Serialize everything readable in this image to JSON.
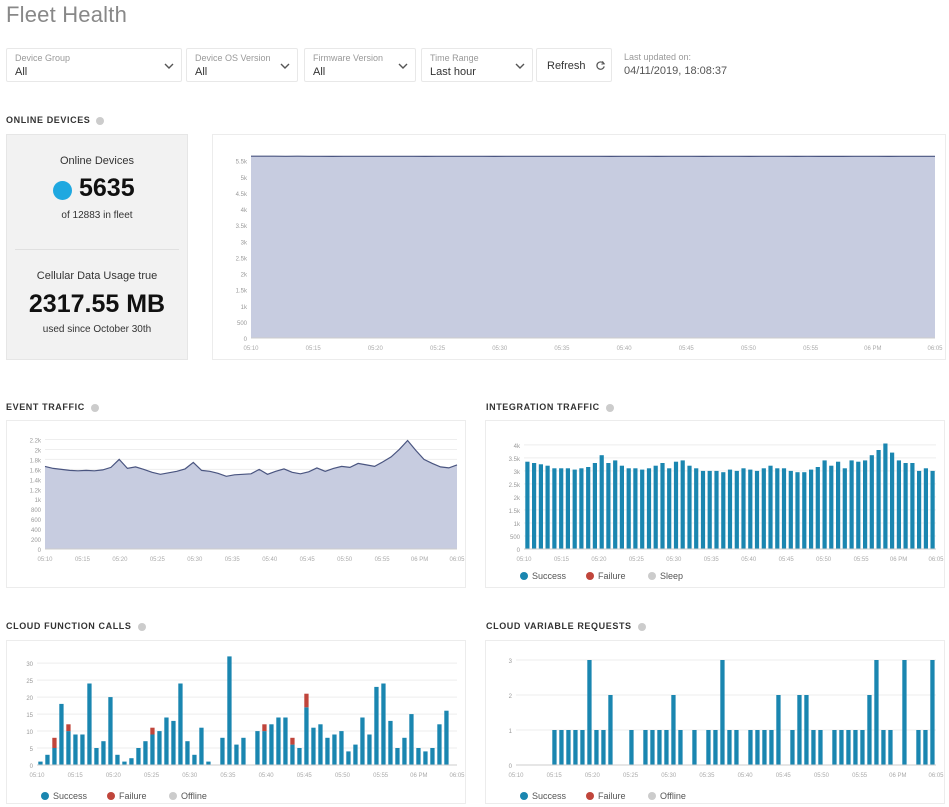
{
  "header": {
    "title": "Fleet Health"
  },
  "filters": {
    "device_group": {
      "label": "Device Group",
      "value": "All"
    },
    "device_os": {
      "label": "Device OS Version",
      "value": "All"
    },
    "firmware": {
      "label": "Firmware Version",
      "value": "All"
    },
    "time_range": {
      "label": "Time Range",
      "value": "Last hour"
    },
    "refresh_label": "Refresh",
    "last_updated_label": "Last updated on:",
    "last_updated_value": "04/11/2019, 18:08:37"
  },
  "sections": {
    "online_devices": "ONLINE DEVICES",
    "event_traffic": "EVENT TRAFFIC",
    "integration_traffic": "INTEGRATION TRAFFIC",
    "cloud_function_calls": "CLOUD FUNCTION CALLS",
    "cloud_variable_requests": "CLOUD VARIABLE REQUESTS"
  },
  "stats": {
    "online_label": "Online Devices",
    "online_count": "5635",
    "online_sub": "of 12883 in fleet",
    "cellular_label": "Cellular Data Usage true",
    "cellular_value": "2317.55 MB",
    "cellular_sub": "used since October 30th"
  },
  "colors": {
    "series": "#1a86b0",
    "area_fill": "#c7cce0",
    "area_line": "#4a5580",
    "failure": "#c0453b",
    "offline": "#cccccc",
    "online_dot": "#1fa8e0"
  },
  "legends": {
    "integration": [
      "Success",
      "Failure",
      "Sleep"
    ],
    "cloud_function": [
      "Success",
      "Failure",
      "Offline"
    ],
    "cloud_variable": [
      "Success",
      "Failure",
      "Offline"
    ]
  },
  "chart_data": [
    {
      "id": "online",
      "type": "area",
      "x_ticks": [
        "05:10",
        "05:15",
        "05:20",
        "05:25",
        "05:30",
        "05:35",
        "05:40",
        "05:45",
        "05:50",
        "05:55",
        "06 PM",
        "06:05"
      ],
      "y_ticks": [
        "0",
        "500",
        "1k",
        "1.5k",
        "2k",
        "2.5k",
        "3k",
        "3.5k",
        "4k",
        "4.5k",
        "5k",
        "5.5k"
      ],
      "ylim": [
        0,
        5800
      ],
      "values": [
        5640,
        5640,
        5638,
        5637,
        5638,
        5636,
        5635,
        5634,
        5635,
        5636,
        5635,
        5636,
        5637,
        5636,
        5635,
        5634,
        5635,
        5636,
        5637,
        5636,
        5635,
        5634,
        5635,
        5636,
        5637,
        5636,
        5635,
        5636,
        5637,
        5636,
        5635,
        5634,
        5635,
        5636,
        5635,
        5634,
        5635,
        5636,
        5635,
        5634,
        5635,
        5636,
        5635,
        5634,
        5635,
        5636,
        5635,
        5634,
        5635,
        5634,
        5633,
        5634,
        5635,
        5636,
        5635,
        5634,
        5635,
        5636,
        5635,
        5635
      ]
    },
    {
      "id": "event",
      "type": "area",
      "x_ticks": [
        "05:10",
        "05:15",
        "05:20",
        "05:25",
        "05:30",
        "05:35",
        "05:40",
        "05:45",
        "05:50",
        "05:55",
        "06 PM",
        "06:05"
      ],
      "y_ticks": [
        "0",
        "200",
        "400",
        "600",
        "800",
        "1k",
        "1.2k",
        "1.4k",
        "1.6k",
        "1.8k",
        "2k",
        "2.2k"
      ],
      "ylim": [
        0,
        2250
      ],
      "values": [
        1660,
        1620,
        1600,
        1580,
        1570,
        1580,
        1570,
        1590,
        1640,
        1800,
        1620,
        1650,
        1600,
        1540,
        1500,
        1530,
        1560,
        1610,
        1740,
        1580,
        1560,
        1520,
        1460,
        1490,
        1500,
        1510,
        1600,
        1500,
        1560,
        1610,
        1540,
        1510,
        1550,
        1630,
        1560,
        1620,
        1660,
        1640,
        1720,
        1690,
        1660,
        1750,
        1850,
        2000,
        2180,
        1980,
        1800,
        1720,
        1650,
        1630,
        1690
      ]
    },
    {
      "id": "integration",
      "type": "bar",
      "y_ticks": [
        "0",
        "500",
        "1k",
        "1.5k",
        "2k",
        "2.5k",
        "3k",
        "3.5k",
        "4k"
      ],
      "ylim": [
        0,
        4300
      ],
      "x_ticks": [
        "05:10",
        "05:15",
        "05:20",
        "05:25",
        "05:30",
        "05:35",
        "05:40",
        "05:45",
        "05:50",
        "05:55",
        "06 PM",
        "06:05"
      ],
      "series": [
        {
          "name": "Success",
          "values": [
            3350,
            3300,
            3250,
            3200,
            3100,
            3100,
            3100,
            3050,
            3100,
            3150,
            3300,
            3600,
            3300,
            3400,
            3200,
            3100,
            3100,
            3050,
            3100,
            3200,
            3300,
            3100,
            3350,
            3400,
            3200,
            3100,
            3000,
            3000,
            3000,
            2950,
            3050,
            3000,
            3100,
            3050,
            3000,
            3100,
            3200,
            3100,
            3100,
            3000,
            2950,
            2950,
            3050,
            3150,
            3400,
            3200,
            3350,
            3100,
            3400,
            3350,
            3400,
            3600,
            3800,
            4050,
            3700,
            3400,
            3300,
            3300,
            3000,
            3100,
            3000
          ]
        }
      ]
    },
    {
      "id": "cloud_function",
      "type": "bar",
      "y_ticks": [
        "0",
        "5",
        "10",
        "15",
        "20",
        "25",
        "30"
      ],
      "ylim": [
        0,
        33
      ],
      "x_ticks": [
        "05:10",
        "05:15",
        "05:20",
        "05:25",
        "05:30",
        "05:35",
        "05:40",
        "05:45",
        "05:50",
        "05:55",
        "06 PM",
        "06:05"
      ],
      "series": [
        {
          "name": "Success",
          "values": [
            1,
            3,
            5,
            18,
            10,
            9,
            9,
            24,
            5,
            7,
            20,
            3,
            1,
            2,
            5,
            7,
            9,
            10,
            14,
            13,
            24,
            7,
            3,
            11,
            1,
            0,
            8,
            32,
            6,
            8,
            0,
            10,
            10,
            12,
            14,
            14,
            6,
            5,
            17,
            11,
            12,
            8,
            9,
            10,
            4,
            6,
            14,
            9,
            23,
            24,
            13,
            5,
            8,
            15,
            5,
            4,
            5,
            12,
            16,
            0
          ]
        },
        {
          "name": "Failure",
          "values": [
            0,
            0,
            3,
            0,
            2,
            0,
            0,
            0,
            0,
            0,
            0,
            0,
            0,
            0,
            0,
            0,
            2,
            0,
            0,
            0,
            0,
            0,
            0,
            0,
            0,
            0,
            0,
            0,
            0,
            0,
            0,
            0,
            2,
            0,
            0,
            0,
            2,
            0,
            4,
            0,
            0,
            0,
            0,
            0,
            0,
            0,
            0,
            0,
            0,
            0,
            0,
            0,
            0,
            0,
            0,
            0,
            0,
            0,
            0,
            0
          ]
        }
      ]
    },
    {
      "id": "cloud_variable",
      "type": "bar",
      "y_ticks": [
        "0",
        "1",
        "2",
        "3"
      ],
      "ylim": [
        0,
        3.2
      ],
      "x_ticks": [
        "05:10",
        "05:15",
        "05:20",
        "05:25",
        "05:30",
        "05:35",
        "05:40",
        "05:45",
        "05:50",
        "05:55",
        "06 PM",
        "06:05"
      ],
      "series": [
        {
          "name": "Success",
          "values": [
            0,
            0,
            0,
            0,
            0,
            1,
            1,
            1,
            1,
            1,
            3,
            1,
            1,
            2,
            0,
            0,
            1,
            0,
            1,
            1,
            1,
            1,
            2,
            1,
            0,
            1,
            0,
            1,
            1,
            3,
            1,
            1,
            0,
            1,
            1,
            1,
            1,
            2,
            0,
            1,
            2,
            2,
            1,
            1,
            0,
            1,
            1,
            1,
            1,
            1,
            2,
            3,
            1,
            1,
            0,
            3,
            0,
            1,
            1,
            3
          ]
        }
      ]
    }
  ]
}
